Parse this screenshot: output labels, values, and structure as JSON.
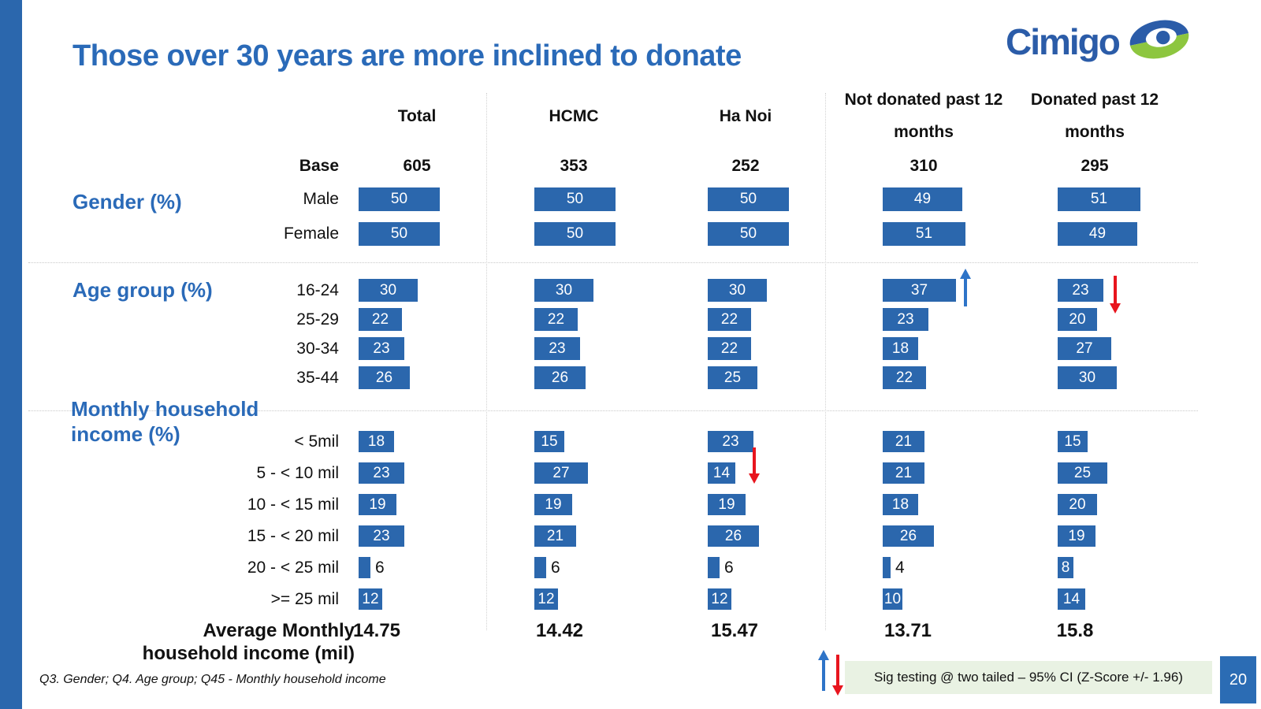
{
  "slide": {
    "title": "Those over 30 years are more inclined to donate",
    "logo_text": "Cimigo",
    "footer_note": "Q3. Gender; Q4. Age group; Q45 - Monthly household income",
    "sig_note": "Sig testing @ two tailed – 95% CI (Z-Score +/- 1.96)",
    "page_number": "20"
  },
  "table": {
    "base_label": "Base",
    "columns": [
      {
        "label": "Total",
        "base": "605"
      },
      {
        "label": "HCMC",
        "base": "353"
      },
      {
        "label": "Ha Noi",
        "base": "252"
      },
      {
        "label": "Not donated past 12 months",
        "base": "310"
      },
      {
        "label": "Donated past 12 months",
        "base": "295"
      }
    ],
    "sections": [
      {
        "label": "Gender (%)",
        "rows": [
          {
            "label": "Male",
            "values": [
              50,
              50,
              50,
              49,
              51
            ]
          },
          {
            "label": "Female",
            "values": [
              50,
              50,
              50,
              51,
              49
            ]
          }
        ]
      },
      {
        "label": "Age group (%)",
        "rows": [
          {
            "label": "16-24",
            "values": [
              30,
              30,
              30,
              37,
              23
            ]
          },
          {
            "label": "25-29",
            "values": [
              22,
              22,
              22,
              23,
              20
            ]
          },
          {
            "label": "30-34",
            "values": [
              23,
              23,
              22,
              18,
              27
            ]
          },
          {
            "label": "35-44",
            "values": [
              26,
              26,
              25,
              22,
              30
            ]
          }
        ]
      },
      {
        "label": "Monthly household income (%)",
        "rows": [
          {
            "label": "< 5mil",
            "values": [
              18,
              15,
              23,
              21,
              15
            ]
          },
          {
            "label": "5 - < 10 mil",
            "values": [
              23,
              27,
              14,
              21,
              25
            ]
          },
          {
            "label": "10 - < 15 mil",
            "values": [
              19,
              19,
              19,
              18,
              20
            ]
          },
          {
            "label": "15 - < 20 mil",
            "values": [
              23,
              21,
              26,
              26,
              19
            ]
          },
          {
            "label": "20 - < 25 mil",
            "values": [
              6,
              6,
              6,
              4,
              8
            ]
          },
          {
            "label": ">= 25 mil",
            "values": [
              12,
              12,
              12,
              10,
              14
            ]
          }
        ]
      }
    ],
    "average": {
      "label": "Average Monthly household income (mil)",
      "values": [
        "14.75",
        "14.42",
        "15.47",
        "13.71",
        "15.8"
      ]
    }
  },
  "chart_data": {
    "type": "bar",
    "orientation": "horizontal",
    "title": "Those over 30 years are more inclined to donate",
    "unit": "%",
    "columns": [
      "Total",
      "HCMC",
      "Ha Noi",
      "Not donated past 12 months",
      "Donated past 12 months"
    ],
    "base_sizes": [
      605,
      353,
      252,
      310,
      295
    ],
    "sections": [
      {
        "name": "Gender (%)",
        "categories": [
          "Male",
          "Female"
        ],
        "series": [
          {
            "name": "Total",
            "values": [
              50,
              50
            ]
          },
          {
            "name": "HCMC",
            "values": [
              50,
              50
            ]
          },
          {
            "name": "Ha Noi",
            "values": [
              50,
              50
            ]
          },
          {
            "name": "Not donated past 12 months",
            "values": [
              49,
              51
            ]
          },
          {
            "name": "Donated past 12 months",
            "values": [
              51,
              49
            ]
          }
        ]
      },
      {
        "name": "Age group (%)",
        "categories": [
          "16-24",
          "25-29",
          "30-34",
          "35-44"
        ],
        "series": [
          {
            "name": "Total",
            "values": [
              30,
              22,
              23,
              26
            ]
          },
          {
            "name": "HCMC",
            "values": [
              30,
              22,
              23,
              26
            ]
          },
          {
            "name": "Ha Noi",
            "values": [
              30,
              22,
              22,
              25
            ]
          },
          {
            "name": "Not donated past 12 months",
            "values": [
              37,
              23,
              18,
              22
            ]
          },
          {
            "name": "Donated past 12 months",
            "values": [
              23,
              20,
              27,
              30
            ]
          }
        ]
      },
      {
        "name": "Monthly household income (%)",
        "categories": [
          "< 5mil",
          "5 - < 10 mil",
          "10 - < 15 mil",
          "15 - < 20 mil",
          "20 - < 25 mil",
          ">= 25 mil"
        ],
        "series": [
          {
            "name": "Total",
            "values": [
              18,
              23,
              19,
              23,
              6,
              12
            ]
          },
          {
            "name": "HCMC",
            "values": [
              15,
              27,
              19,
              21,
              6,
              12
            ]
          },
          {
            "name": "Ha Noi",
            "values": [
              23,
              14,
              19,
              26,
              6,
              12
            ]
          },
          {
            "name": "Not donated past 12 months",
            "values": [
              21,
              21,
              18,
              26,
              4,
              10
            ]
          },
          {
            "name": "Donated past 12 months",
            "values": [
              15,
              25,
              20,
              19,
              8,
              14
            ]
          }
        ]
      }
    ],
    "averages": {
      "label": "Average Monthly household income (mil)",
      "values": [
        14.75,
        14.42,
        15.47,
        13.71,
        15.8
      ]
    },
    "significance_markers": [
      {
        "section": "Age group (%)",
        "category": "16-24",
        "column": "Not donated past 12 months",
        "direction": "up",
        "color": "blue"
      },
      {
        "section": "Age group (%)",
        "category": "16-24",
        "column": "Donated past 12 months",
        "direction": "down",
        "color": "red"
      },
      {
        "section": "Monthly household income (%)",
        "category": "5 - < 10 mil",
        "column": "Ha Noi",
        "direction": "down",
        "color": "red"
      }
    ],
    "legend_note": "Sig testing @ two tailed – 95% CI (Z-Score +/- 1.96)"
  }
}
